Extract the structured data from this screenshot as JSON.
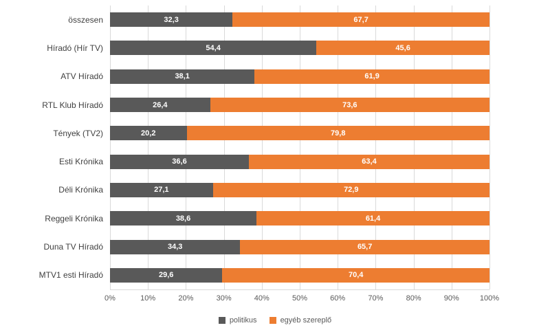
{
  "chart_data": {
    "type": "bar",
    "orientation": "horizontal",
    "stacked": true,
    "grid": "vertical",
    "legend_position": "bottom",
    "xlim": [
      0,
      100
    ],
    "x_ticks": [
      "0%",
      "10%",
      "20%",
      "30%",
      "40%",
      "50%",
      "60%",
      "70%",
      "80%",
      "90%",
      "100%"
    ],
    "value_label_decimal_separator": ",",
    "categories": [
      "összesen",
      "Híradó (Hír TV)",
      "ATV Híradó",
      "RTL Klub Híradó",
      "Tények (TV2)",
      "Esti Krónika",
      "Déli Krónika",
      "Reggeli Krónika",
      "Duna TV Híradó",
      "MTV1 esti Híradó"
    ],
    "series": [
      {
        "name": "politikus",
        "color": "#595959",
        "values": [
          32.3,
          54.4,
          38.1,
          26.4,
          20.2,
          36.6,
          27.1,
          38.6,
          34.3,
          29.6
        ]
      },
      {
        "name": "egyéb szereplő",
        "color": "#ED7D31",
        "values": [
          67.7,
          45.6,
          61.9,
          73.6,
          79.8,
          63.4,
          72.9,
          61.4,
          65.7,
          70.4
        ]
      }
    ]
  },
  "colors": {
    "gridline": "#d9d9d9",
    "axis_text": "#595959",
    "category_text": "#404040",
    "value_text": "#ffffff"
  }
}
